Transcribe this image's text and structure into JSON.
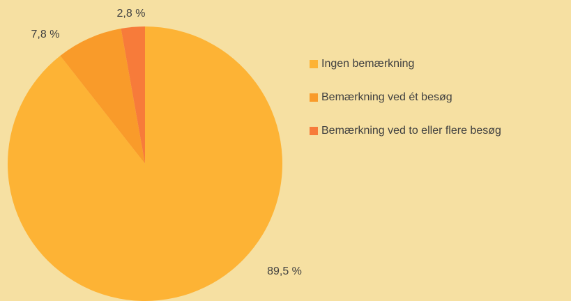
{
  "chart_data": {
    "type": "pie",
    "categories": [
      "Ingen bemærkning",
      "Bemærkning ved ét besøg",
      "Bemærkning ved to eller flere besøg"
    ],
    "values": [
      89.5,
      7.8,
      2.8
    ],
    "value_labels": [
      "89,5 %",
      "7,8 %",
      "2,8 %"
    ],
    "colors": [
      "#fdb335",
      "#f99b2a",
      "#f77b3a"
    ],
    "legend": "right"
  }
}
